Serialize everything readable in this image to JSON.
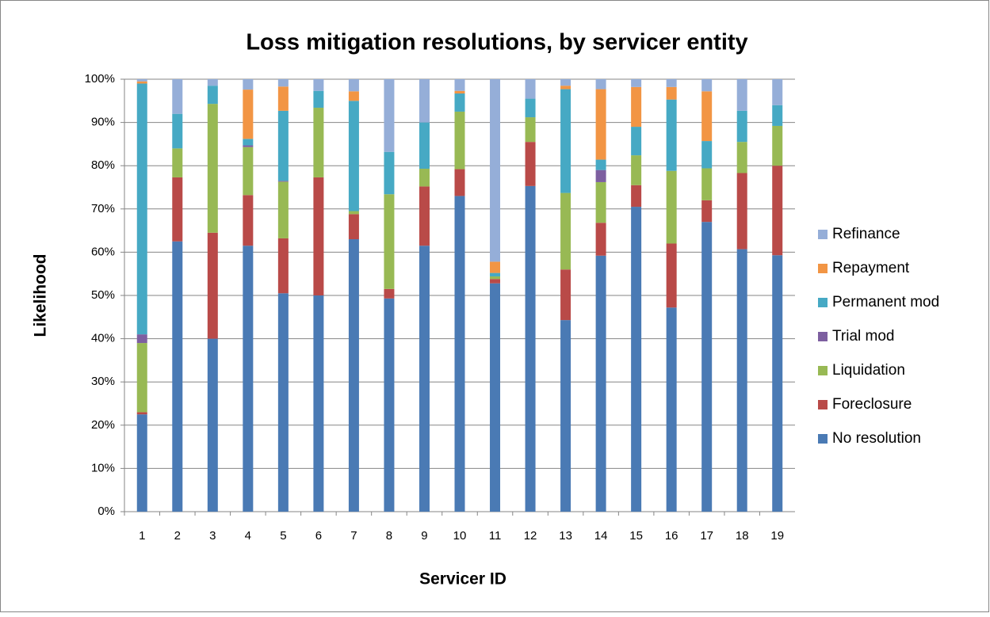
{
  "chart_data": {
    "type": "stacked_bar",
    "title": "Loss mitigation resolutions, by servicer entity",
    "x_label": "Servicer ID",
    "y_label": "Likelihood",
    "categories": [
      "1",
      "2",
      "3",
      "4",
      "5",
      "6",
      "7",
      "8",
      "9",
      "10",
      "11",
      "12",
      "13",
      "14",
      "15",
      "16",
      "17",
      "18",
      "19"
    ],
    "series": [
      {
        "name": "No resolution",
        "color": "#4a7ab4",
        "values": [
          22.5,
          62.5,
          40,
          61.5,
          50.5,
          50,
          63,
          49.3,
          61.5,
          73,
          52.8,
          75.3,
          44.3,
          59.2,
          70.5,
          47.2,
          67,
          60.7,
          59.3
        ]
      },
      {
        "name": "Foreclosure",
        "color": "#b94a48",
        "values": [
          0.5,
          14.8,
          24.5,
          11.7,
          12.7,
          27.3,
          5.8,
          2.2,
          13.7,
          6.2,
          1,
          10.2,
          11.7,
          7.6,
          5,
          14.8,
          5,
          17.6,
          20.7
        ]
      },
      {
        "name": "Liquidation",
        "color": "#98b954",
        "values": [
          16,
          6.7,
          29.8,
          11.1,
          13.1,
          16.1,
          0.7,
          21.9,
          4.1,
          13.3,
          0.6,
          5.7,
          17.7,
          9.4,
          6.9,
          16.8,
          7.4,
          7.2,
          9.2
        ]
      },
      {
        "name": "Trial mod",
        "color": "#7d5fa0",
        "values": [
          2,
          0,
          0,
          0.4,
          0.2,
          0,
          0,
          0,
          0,
          0,
          0,
          0,
          0,
          2.8,
          0,
          0,
          0,
          0,
          0
        ]
      },
      {
        "name": "Permanent mod",
        "color": "#46a9c4",
        "values": [
          58,
          8,
          4.2,
          1.5,
          16.2,
          3.9,
          25.5,
          9.8,
          10.7,
          4.2,
          0.8,
          4.3,
          24,
          2.4,
          6.6,
          16.5,
          6.3,
          7.2,
          4.8
        ]
      },
      {
        "name": "Repayment",
        "color": "#f29544",
        "values": [
          0.5,
          0,
          0,
          11.4,
          5.6,
          0,
          2.2,
          0,
          0,
          0.6,
          2.6,
          0,
          0.8,
          16.3,
          9.2,
          2.9,
          11.5,
          0,
          0
        ]
      },
      {
        "name": "Refinance",
        "color": "#95aed8",
        "values": [
          0.5,
          8,
          1.5,
          2.4,
          1.7,
          2.7,
          2.8,
          16.8,
          10,
          2.7,
          42.2,
          4.5,
          1.5,
          2.3,
          1.8,
          1.8,
          2.8,
          7.3,
          6
        ]
      }
    ],
    "ylim": [
      0,
      100
    ],
    "yticks": [
      {
        "value": 0,
        "label": "0%"
      },
      {
        "value": 10,
        "label": "10%"
      },
      {
        "value": 20,
        "label": "20%"
      },
      {
        "value": 30,
        "label": "30%"
      },
      {
        "value": 40,
        "label": "40%"
      },
      {
        "value": 50,
        "label": "50%"
      },
      {
        "value": 60,
        "label": "60%"
      },
      {
        "value": 70,
        "label": "70%"
      },
      {
        "value": 80,
        "label": "80%"
      },
      {
        "value": 90,
        "label": "90%"
      },
      {
        "value": 100,
        "label": "100%"
      }
    ],
    "grid": true,
    "legend": "right"
  }
}
